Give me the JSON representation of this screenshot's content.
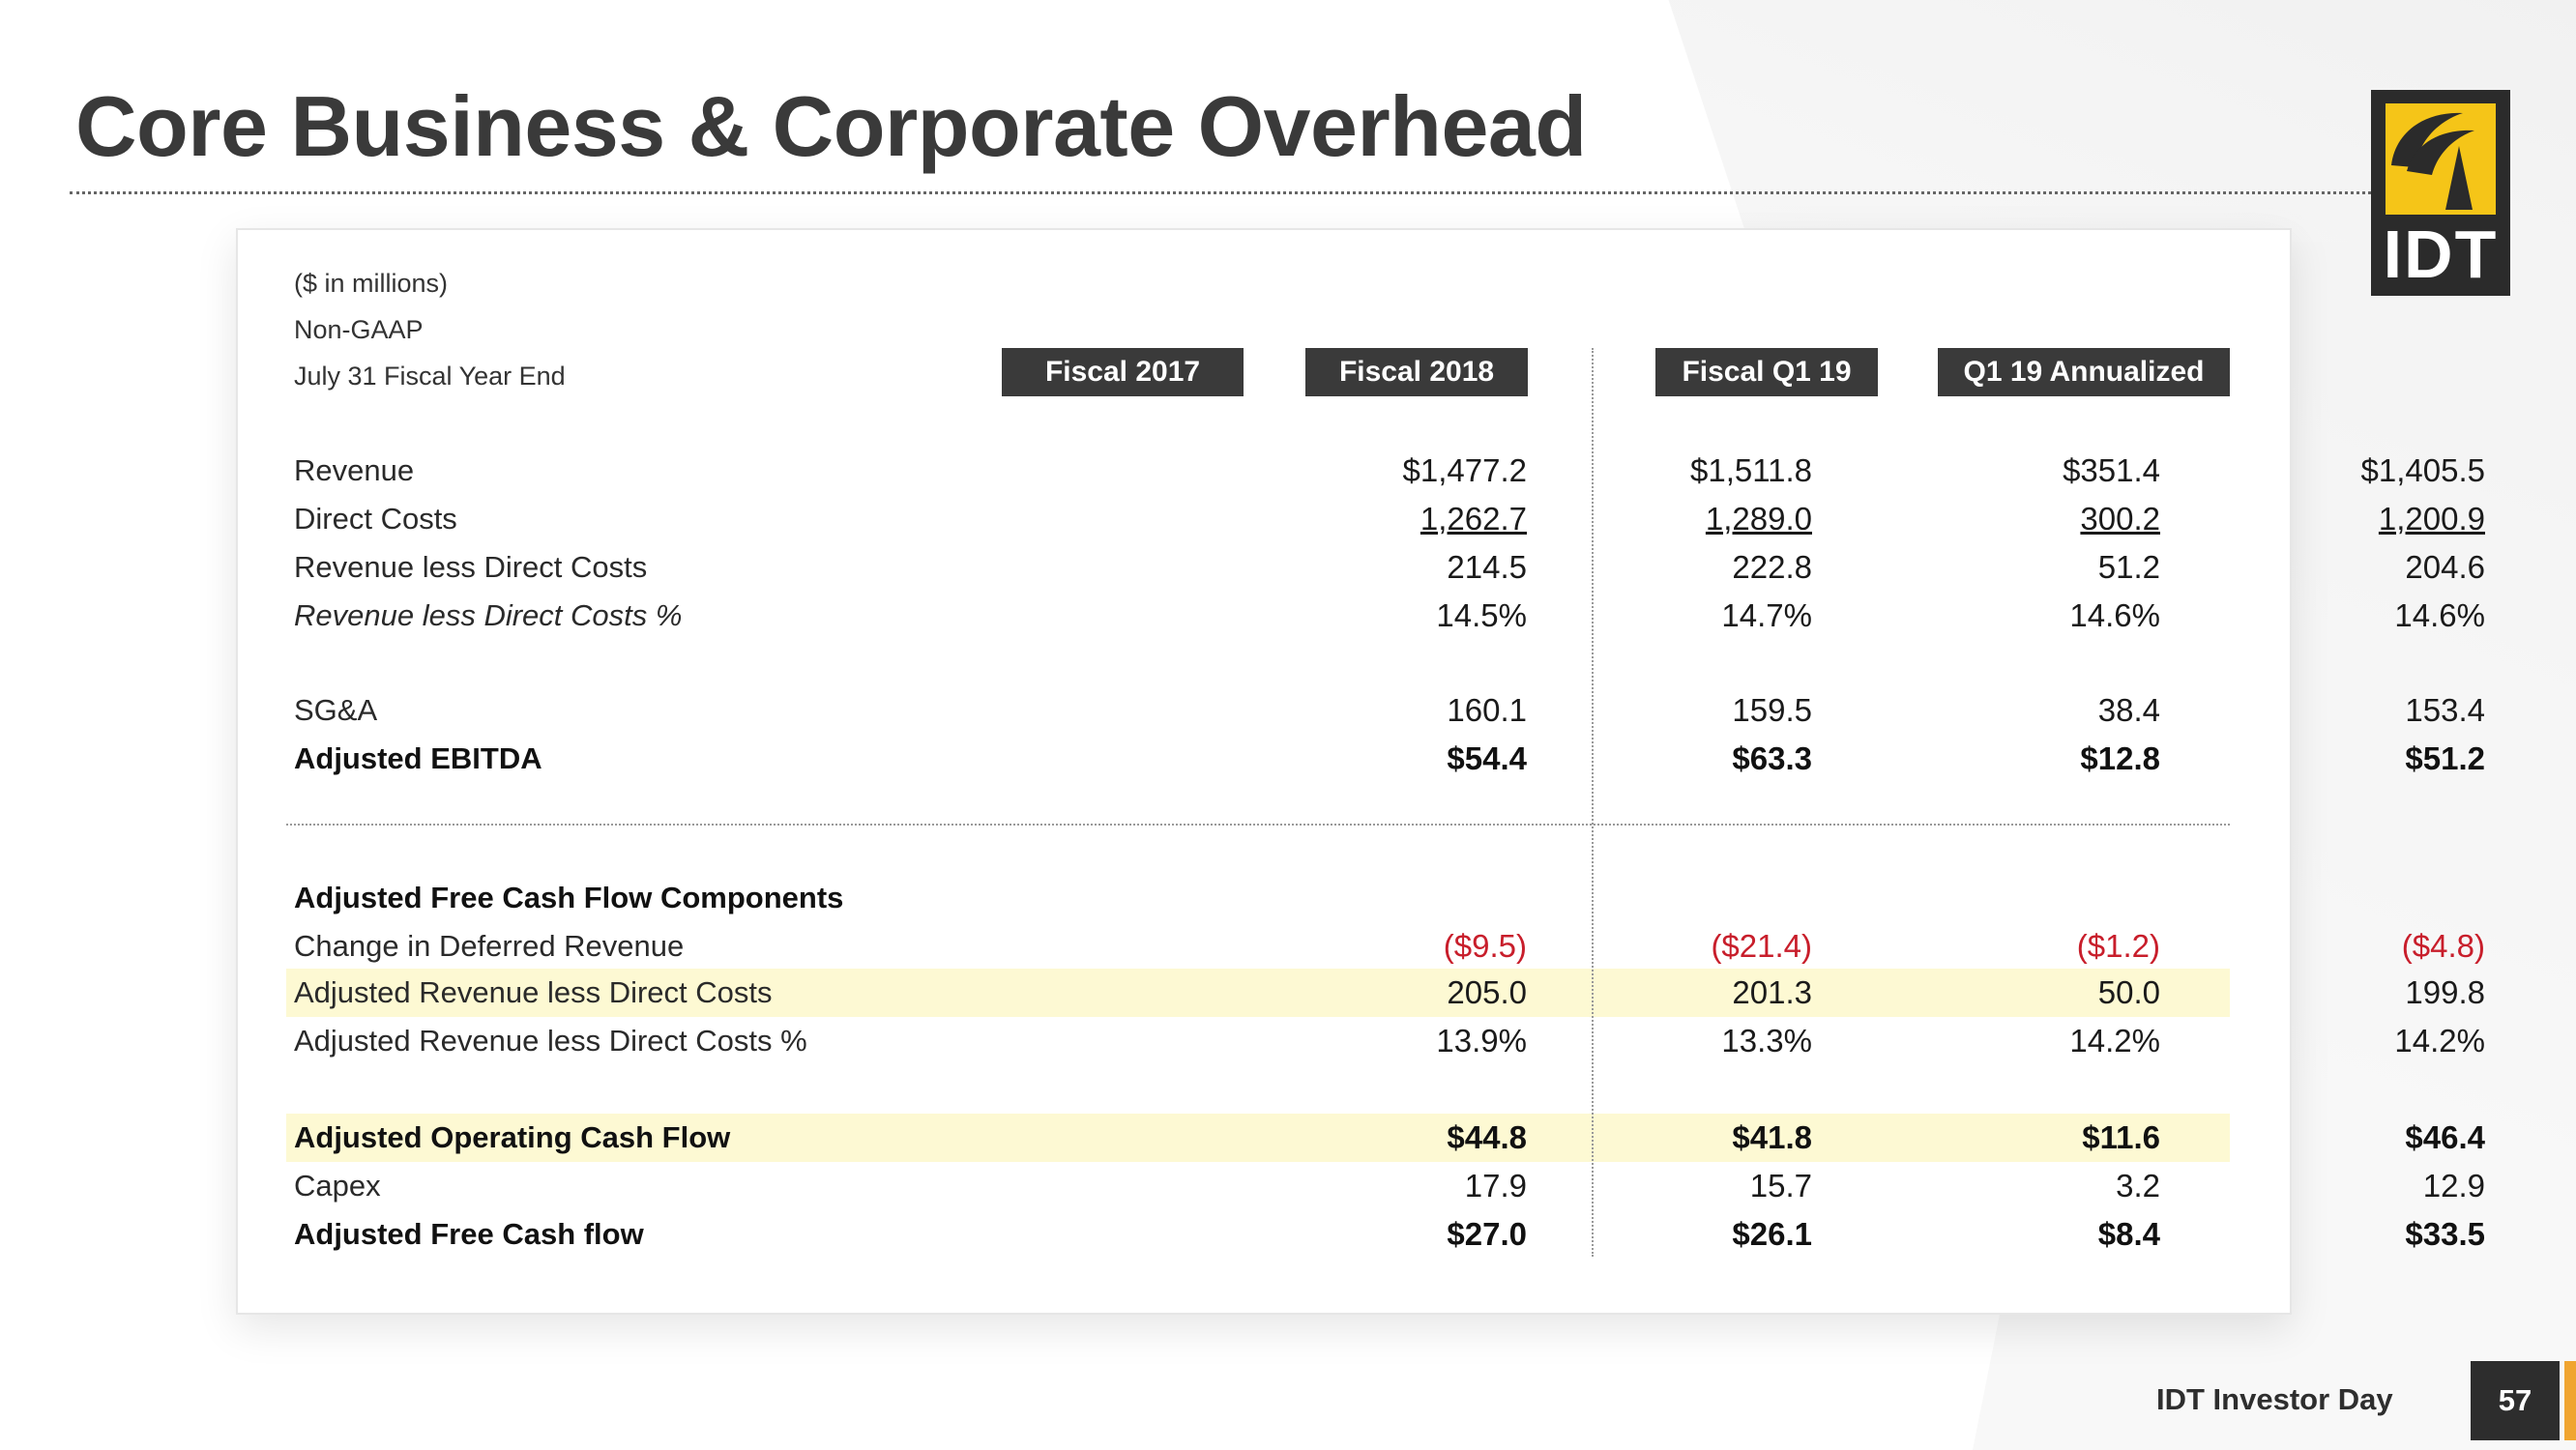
{
  "title": "Core Business & Corporate Overhead",
  "logo_text": "IDT",
  "meta": [
    "($ in millions)",
    "Non-GAAP",
    "July 31 Fiscal Year End"
  ],
  "columns": [
    "Fiscal 2017",
    "Fiscal 2018",
    "Fiscal Q1 19",
    "Q1 19 Annualized"
  ],
  "rows": [
    {
      "label": "Revenue",
      "values": [
        "$1,477.2",
        "$1,511.8",
        "$351.4",
        "$1,405.5"
      ]
    },
    {
      "label": "Direct Costs",
      "values": [
        "1,262.7",
        "1,289.0",
        "300.2",
        "1,200.9"
      ]
    },
    {
      "label": "Revenue less Direct Costs",
      "values": [
        "214.5",
        "222.8",
        "51.2",
        "204.6"
      ]
    },
    {
      "label": "Revenue less Direct Costs %",
      "values": [
        "14.5%",
        "14.7%",
        "14.6%",
        "14.6%"
      ]
    },
    {
      "label": "SG&A",
      "values": [
        "160.1",
        "159.5",
        "38.4",
        "153.4"
      ]
    },
    {
      "label": "Adjusted EBITDA",
      "values": [
        "$54.4",
        "$63.3",
        "$12.8",
        "$51.2"
      ]
    },
    {
      "label": "Adjusted Free Cash Flow Components",
      "values": [
        "",
        "",
        "",
        ""
      ]
    },
    {
      "label": "Change in Deferred Revenue",
      "values": [
        "($9.5)",
        "($21.4)",
        "($1.2)",
        "($4.8)"
      ]
    },
    {
      "label": "Adjusted Revenue less Direct Costs",
      "values": [
        "205.0",
        "201.3",
        "50.0",
        "199.8"
      ]
    },
    {
      "label": "Adjusted Revenue less Direct Costs %",
      "values": [
        "13.9%",
        "13.3%",
        "14.2%",
        "14.2%"
      ]
    },
    {
      "label": "Adjusted Operating Cash Flow",
      "values": [
        "$44.8",
        "$41.8",
        "$11.6",
        "$46.4"
      ]
    },
    {
      "label": "Capex",
      "values": [
        "17.9",
        "15.7",
        "3.2",
        "12.9"
      ]
    },
    {
      "label": "Adjusted Free Cash flow",
      "values": [
        "$27.0",
        "$26.1",
        "$8.4",
        "$33.5"
      ]
    }
  ],
  "colors": {
    "negative": "#c81e2b",
    "highlight": "#fdf9d3",
    "header_bg": "#3a3a3a",
    "logo_gold": "#f5c518"
  },
  "footer": {
    "text": "IDT Investor Day",
    "page": "57"
  }
}
